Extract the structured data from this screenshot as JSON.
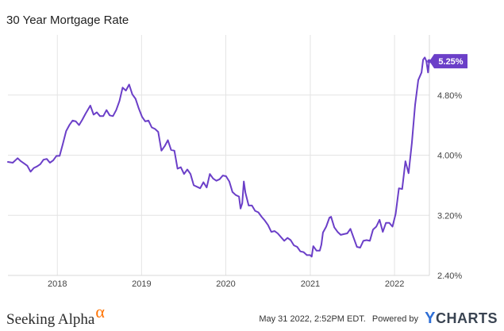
{
  "chart_data": {
    "type": "line",
    "title": "30 Year Mortgage Rate",
    "xlabel": "",
    "ylabel": "",
    "x_ticks": [
      "2018",
      "2019",
      "2020",
      "2021",
      "2022"
    ],
    "y_ticks": [
      "2.40%",
      "3.20%",
      "4.00%",
      "4.80%"
    ],
    "ylim": [
      2.4,
      5.6
    ],
    "xlim": [
      "2017-06-01",
      "2022-06-01"
    ],
    "grid": true,
    "last_value_label": "5.25%",
    "series": [
      {
        "name": "",
        "color": "#6b3fc8",
        "points": [
          [
            "2017-06-01",
            3.91
          ],
          [
            "2017-06-22",
            3.9
          ],
          [
            "2017-07-13",
            3.96
          ],
          [
            "2017-07-27",
            3.92
          ],
          [
            "2017-08-10",
            3.89
          ],
          [
            "2017-08-24",
            3.86
          ],
          [
            "2017-09-07",
            3.78
          ],
          [
            "2017-09-21",
            3.83
          ],
          [
            "2017-10-05",
            3.85
          ],
          [
            "2017-10-19",
            3.88
          ],
          [
            "2017-11-02",
            3.94
          ],
          [
            "2017-11-16",
            3.95
          ],
          [
            "2017-11-30",
            3.9
          ],
          [
            "2017-12-14",
            3.93
          ],
          [
            "2017-12-28",
            3.99
          ],
          [
            "2018-01-11",
            3.99
          ],
          [
            "2018-01-25",
            4.15
          ],
          [
            "2018-02-08",
            4.32
          ],
          [
            "2018-02-22",
            4.4
          ],
          [
            "2018-03-08",
            4.46
          ],
          [
            "2018-03-22",
            4.45
          ],
          [
            "2018-04-05",
            4.4
          ],
          [
            "2018-04-19",
            4.47
          ],
          [
            "2018-05-03",
            4.55
          ],
          [
            "2018-05-24",
            4.66
          ],
          [
            "2018-06-07",
            4.54
          ],
          [
            "2018-06-21",
            4.57
          ],
          [
            "2018-07-05",
            4.52
          ],
          [
            "2018-07-19",
            4.52
          ],
          [
            "2018-08-02",
            4.6
          ],
          [
            "2018-08-16",
            4.53
          ],
          [
            "2018-08-30",
            4.52
          ],
          [
            "2018-09-13",
            4.6
          ],
          [
            "2018-09-27",
            4.72
          ],
          [
            "2018-10-11",
            4.9
          ],
          [
            "2018-10-25",
            4.86
          ],
          [
            "2018-11-08",
            4.94
          ],
          [
            "2018-11-22",
            4.81
          ],
          [
            "2018-12-06",
            4.75
          ],
          [
            "2018-12-20",
            4.62
          ],
          [
            "2019-01-03",
            4.51
          ],
          [
            "2019-01-17",
            4.45
          ],
          [
            "2019-01-31",
            4.46
          ],
          [
            "2019-02-14",
            4.37
          ],
          [
            "2019-02-28",
            4.35
          ],
          [
            "2019-03-14",
            4.31
          ],
          [
            "2019-03-28",
            4.06
          ],
          [
            "2019-04-11",
            4.12
          ],
          [
            "2019-04-25",
            4.2
          ],
          [
            "2019-05-09",
            4.07
          ],
          [
            "2019-05-23",
            4.06
          ],
          [
            "2019-06-06",
            3.82
          ],
          [
            "2019-06-20",
            3.84
          ],
          [
            "2019-07-04",
            3.75
          ],
          [
            "2019-07-18",
            3.81
          ],
          [
            "2019-08-01",
            3.75
          ],
          [
            "2019-08-15",
            3.6
          ],
          [
            "2019-08-29",
            3.58
          ],
          [
            "2019-09-12",
            3.56
          ],
          [
            "2019-09-26",
            3.64
          ],
          [
            "2019-10-10",
            3.57
          ],
          [
            "2019-10-24",
            3.75
          ],
          [
            "2019-11-07",
            3.69
          ],
          [
            "2019-11-21",
            3.66
          ],
          [
            "2019-12-05",
            3.68
          ],
          [
            "2019-12-19",
            3.73
          ],
          [
            "2020-01-02",
            3.72
          ],
          [
            "2020-01-16",
            3.65
          ],
          [
            "2020-01-30",
            3.51
          ],
          [
            "2020-02-13",
            3.47
          ],
          [
            "2020-02-27",
            3.45
          ],
          [
            "2020-03-05",
            3.29
          ],
          [
            "2020-03-12",
            3.36
          ],
          [
            "2020-03-19",
            3.65
          ],
          [
            "2020-03-26",
            3.5
          ],
          [
            "2020-04-09",
            3.33
          ],
          [
            "2020-04-23",
            3.33
          ],
          [
            "2020-05-07",
            3.26
          ],
          [
            "2020-05-21",
            3.24
          ],
          [
            "2020-06-04",
            3.18
          ],
          [
            "2020-06-18",
            3.13
          ],
          [
            "2020-07-02",
            3.07
          ],
          [
            "2020-07-16",
            2.98
          ],
          [
            "2020-07-30",
            2.99
          ],
          [
            "2020-08-13",
            2.96
          ],
          [
            "2020-08-27",
            2.91
          ],
          [
            "2020-09-10",
            2.86
          ],
          [
            "2020-09-24",
            2.9
          ],
          [
            "2020-10-08",
            2.87
          ],
          [
            "2020-10-22",
            2.8
          ],
          [
            "2020-11-05",
            2.78
          ],
          [
            "2020-11-19",
            2.72
          ],
          [
            "2020-12-03",
            2.71
          ],
          [
            "2020-12-17",
            2.67
          ],
          [
            "2020-12-31",
            2.67
          ],
          [
            "2021-01-07",
            2.65
          ],
          [
            "2021-01-14",
            2.79
          ],
          [
            "2021-01-28",
            2.73
          ],
          [
            "2021-02-11",
            2.73
          ],
          [
            "2021-02-18",
            2.81
          ],
          [
            "2021-02-25",
            2.97
          ],
          [
            "2021-03-11",
            3.05
          ],
          [
            "2021-03-25",
            3.17
          ],
          [
            "2021-04-01",
            3.18
          ],
          [
            "2021-04-15",
            3.04
          ],
          [
            "2021-04-29",
            2.98
          ],
          [
            "2021-05-13",
            2.94
          ],
          [
            "2021-05-27",
            2.95
          ],
          [
            "2021-06-10",
            2.96
          ],
          [
            "2021-06-24",
            3.02
          ],
          [
            "2021-07-08",
            2.9
          ],
          [
            "2021-07-22",
            2.78
          ],
          [
            "2021-08-05",
            2.77
          ],
          [
            "2021-08-19",
            2.86
          ],
          [
            "2021-09-02",
            2.87
          ],
          [
            "2021-09-16",
            2.86
          ],
          [
            "2021-09-30",
            3.01
          ],
          [
            "2021-10-14",
            3.05
          ],
          [
            "2021-10-28",
            3.14
          ],
          [
            "2021-11-11",
            2.98
          ],
          [
            "2021-11-25",
            3.1
          ],
          [
            "2021-12-09",
            3.1
          ],
          [
            "2021-12-23",
            3.05
          ],
          [
            "2022-01-06",
            3.22
          ],
          [
            "2022-01-20",
            3.56
          ],
          [
            "2022-02-03",
            3.55
          ],
          [
            "2022-02-17",
            3.92
          ],
          [
            "2022-03-03",
            3.76
          ],
          [
            "2022-03-17",
            4.16
          ],
          [
            "2022-03-31",
            4.67
          ],
          [
            "2022-04-14",
            5.0
          ],
          [
            "2022-04-28",
            5.1
          ],
          [
            "2022-05-05",
            5.27
          ],
          [
            "2022-05-12",
            5.3
          ],
          [
            "2022-05-19",
            5.25
          ],
          [
            "2022-05-26",
            5.1
          ],
          [
            "2022-05-31",
            5.25
          ]
        ]
      }
    ]
  },
  "footer": {
    "brand": "Seeking Alpha",
    "alpha_symbol": "α",
    "timestamp": "May 31 2022, 2:52PM EDT.",
    "powered_by": "Powered by",
    "ycharts_y": "Y",
    "ycharts_rest": "CHARTS"
  }
}
